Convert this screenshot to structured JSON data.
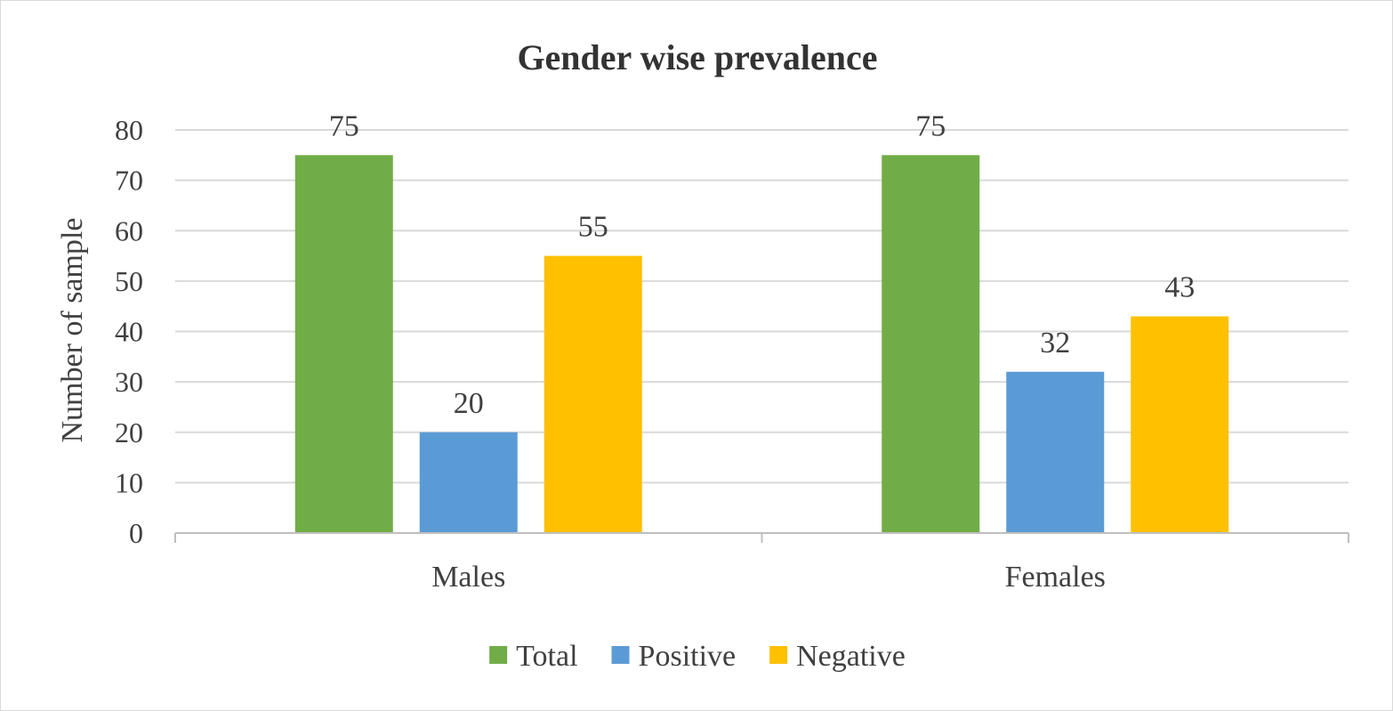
{
  "chart_data": {
    "type": "bar",
    "title": "Gender wise prevalence",
    "xlabel": "",
    "ylabel": "Number of sample",
    "categories": [
      "Males",
      "Females"
    ],
    "series": [
      {
        "name": "Total",
        "values": [
          75,
          75
        ],
        "color": "#70AD47"
      },
      {
        "name": "Positive",
        "values": [
          20,
          32
        ],
        "color": "#5B9BD5"
      },
      {
        "name": "Negative",
        "values": [
          55,
          43
        ],
        "color": "#FFC000"
      }
    ],
    "ylim": [
      0,
      80
    ],
    "yticks": [
      0,
      10,
      20,
      30,
      40,
      50,
      60,
      70,
      80
    ],
    "grid": true,
    "legend_position": "bottom",
    "data_labels": true
  }
}
